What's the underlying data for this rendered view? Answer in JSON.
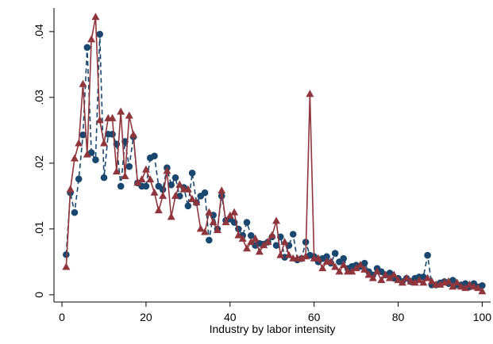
{
  "chart_data": {
    "type": "line",
    "x_label": "Industry by labor intensity",
    "x": [
      1,
      2,
      3,
      4,
      5,
      6,
      7,
      8,
      9,
      10,
      11,
      12,
      13,
      14,
      15,
      16,
      17,
      18,
      19,
      20,
      21,
      22,
      23,
      24,
      25,
      26,
      27,
      28,
      29,
      30,
      31,
      32,
      33,
      34,
      35,
      36,
      37,
      38,
      39,
      40,
      41,
      42,
      43,
      44,
      45,
      46,
      47,
      48,
      49,
      50,
      51,
      52,
      53,
      54,
      55,
      56,
      57,
      58,
      59,
      60,
      61,
      62,
      63,
      64,
      65,
      66,
      67,
      68,
      69,
      70,
      71,
      72,
      73,
      74,
      75,
      76,
      77,
      78,
      79,
      80,
      81,
      82,
      83,
      84,
      85,
      86,
      87,
      88,
      89,
      90,
      91,
      92,
      93,
      94,
      95,
      96,
      97,
      98,
      99,
      100
    ],
    "series": [
      {
        "color": "#1a476f",
        "marker": "circle",
        "dash": "dashed",
        "values": [
          0.0061,
          0.0155,
          0.0125,
          0.0176,
          0.0243,
          0.0376,
          0.0216,
          0.0205,
          0.0396,
          0.0178,
          0.0244,
          0.0244,
          0.0229,
          0.0165,
          0.0233,
          0.0195,
          0.024,
          0.017,
          0.0165,
          0.0165,
          0.0208,
          0.0211,
          0.0165,
          0.016,
          0.0193,
          0.0167,
          0.0178,
          0.015,
          0.0163,
          0.0135,
          0.0185,
          0.014,
          0.015,
          0.0155,
          0.0083,
          0.0121,
          0.01,
          0.015,
          0.0113,
          0.0115,
          0.011,
          0.01,
          0.009,
          0.011,
          0.009,
          0.0075,
          0.0078,
          0.0077,
          0.008,
          0.0088,
          0.0075,
          0.0088,
          0.0057,
          0.0075,
          0.0092,
          0.0053,
          0.0055,
          0.008,
          0.006,
          0.0058,
          0.005,
          0.0055,
          0.0058,
          0.0048,
          0.0063,
          0.005,
          0.0055,
          0.004,
          0.0043,
          0.0045,
          0.0043,
          0.0048,
          0.0035,
          0.003,
          0.004,
          0.0035,
          0.003,
          0.0033,
          0.0025,
          0.0025,
          0.002,
          0.0025,
          0.002,
          0.0025,
          0.0027,
          0.0027,
          0.006,
          0.0015,
          0.0015,
          0.0018,
          0.002,
          0.0017,
          0.0022,
          0.0015,
          0.0015,
          0.0017,
          0.0012,
          0.0017,
          0.0012,
          0.0014
        ]
      },
      {
        "color": "#90353b",
        "marker": "triangle",
        "dash": "solid",
        "values": [
          0.0042,
          0.016,
          0.0207,
          0.023,
          0.032,
          0.0213,
          0.0388,
          0.0422,
          0.0265,
          0.023,
          0.0268,
          0.0268,
          0.0187,
          0.0278,
          0.018,
          0.0272,
          0.0243,
          0.017,
          0.0175,
          0.019,
          0.0175,
          0.0155,
          0.0128,
          0.015,
          0.0188,
          0.0118,
          0.015,
          0.0167,
          0.016,
          0.016,
          0.0145,
          0.014,
          0.01,
          0.0095,
          0.0125,
          0.011,
          0.0098,
          0.0158,
          0.011,
          0.012,
          0.0125,
          0.009,
          0.0085,
          0.007,
          0.008,
          0.0085,
          0.0065,
          0.0075,
          0.008,
          0.009,
          0.0112,
          0.006,
          0.008,
          0.006,
          0.0055,
          0.0055,
          0.0055,
          0.0058,
          0.0305,
          0.0055,
          0.0055,
          0.004,
          0.005,
          0.005,
          0.0042,
          0.0035,
          0.0045,
          0.0035,
          0.0035,
          0.004,
          0.0045,
          0.0038,
          0.003,
          0.0025,
          0.0035,
          0.0022,
          0.003,
          0.0025,
          0.003,
          0.0022,
          0.0018,
          0.0025,
          0.002,
          0.0018,
          0.0022,
          0.0018,
          0.0025,
          0.002,
          0.0015,
          0.0015,
          0.0018,
          0.002,
          0.0012,
          0.0018,
          0.0012,
          0.001,
          0.0015,
          0.0012,
          0.001,
          0.0005
        ]
      }
    ],
    "xlim": [
      -1.9,
      102
    ],
    "ylim": [
      -0.0011,
      0.0436
    ],
    "xticks": [
      0,
      20,
      40,
      60,
      80,
      100
    ],
    "yticks": [
      {
        "value": 0,
        "label": "0"
      },
      {
        "value": 0.01,
        "label": ".01"
      },
      {
        "value": 0.02,
        "label": ".02"
      },
      {
        "value": 0.03,
        "label": ".03"
      },
      {
        "value": 0.04,
        "label": ".04"
      }
    ]
  }
}
